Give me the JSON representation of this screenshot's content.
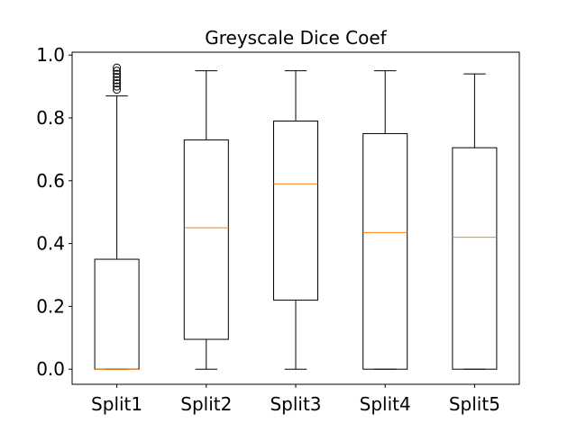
{
  "chart_data": {
    "type": "box",
    "title": "Greyscale Dice Coef",
    "xlabel": "",
    "ylabel": "",
    "ylim": [
      -0.05,
      1.0
    ],
    "yticks": [
      "0.0",
      "0.2",
      "0.4",
      "0.6",
      "0.8",
      "1.0"
    ],
    "grid": false,
    "median_color": "#ff7f0e",
    "box_color": "#000000",
    "categories": [
      "Split1",
      "Split2",
      "Split3",
      "Split4",
      "Split5"
    ],
    "boxes": [
      {
        "whisker_low": 0.0,
        "q1": 0.0,
        "median": 0.0,
        "q3": 0.35,
        "whisker_high": 0.87,
        "outliers": [
          0.89,
          0.9,
          0.91,
          0.92,
          0.93,
          0.94,
          0.95,
          0.96
        ]
      },
      {
        "whisker_low": 0.0,
        "q1": 0.095,
        "median": 0.45,
        "q3": 0.73,
        "whisker_high": 0.95,
        "outliers": []
      },
      {
        "whisker_low": 0.0,
        "q1": 0.22,
        "median": 0.59,
        "q3": 0.79,
        "whisker_high": 0.95,
        "outliers": []
      },
      {
        "whisker_low": 0.0,
        "q1": 0.0,
        "median": 0.435,
        "q3": 0.75,
        "whisker_high": 0.95,
        "outliers": []
      },
      {
        "whisker_low": 0.0,
        "q1": 0.0,
        "median": 0.42,
        "q3": 0.705,
        "whisker_high": 0.94,
        "outliers": []
      }
    ]
  }
}
